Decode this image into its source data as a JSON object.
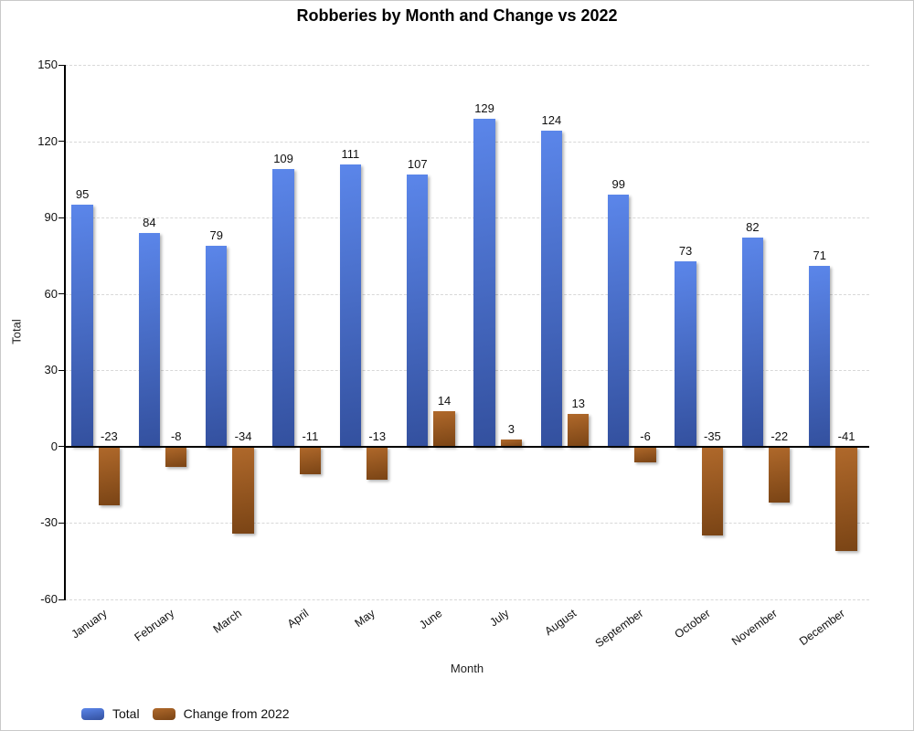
{
  "chart_data": {
    "type": "bar",
    "title": "Robberies by Month and Change vs 2022",
    "xlabel": "Month",
    "ylabel": "Total",
    "ylim": [
      -60,
      150
    ],
    "yticks": [
      150,
      120,
      90,
      60,
      30,
      0,
      -30,
      -60
    ],
    "grid": "horizontal-dashed",
    "legend_position": "bottom-left",
    "categories": [
      "January",
      "February",
      "March",
      "April",
      "May",
      "June",
      "July",
      "August",
      "September",
      "October",
      "November",
      "December"
    ],
    "series": [
      {
        "name": "Total",
        "values": [
          95,
          84,
          79,
          109,
          111,
          107,
          129,
          124,
          99,
          73,
          82,
          71
        ],
        "color_top": "#5b86ea",
        "color_bottom": "#33509e"
      },
      {
        "name": "Change from 2022",
        "values": [
          -23,
          -8,
          -34,
          -11,
          -13,
          14,
          3,
          13,
          -6,
          -35,
          -22,
          -41
        ],
        "color_top": "#b0692b",
        "color_bottom": "#7a4415"
      }
    ],
    "colors": {
      "grid": "#d8d8d8",
      "axis": "#000000",
      "text": "#111111"
    }
  }
}
